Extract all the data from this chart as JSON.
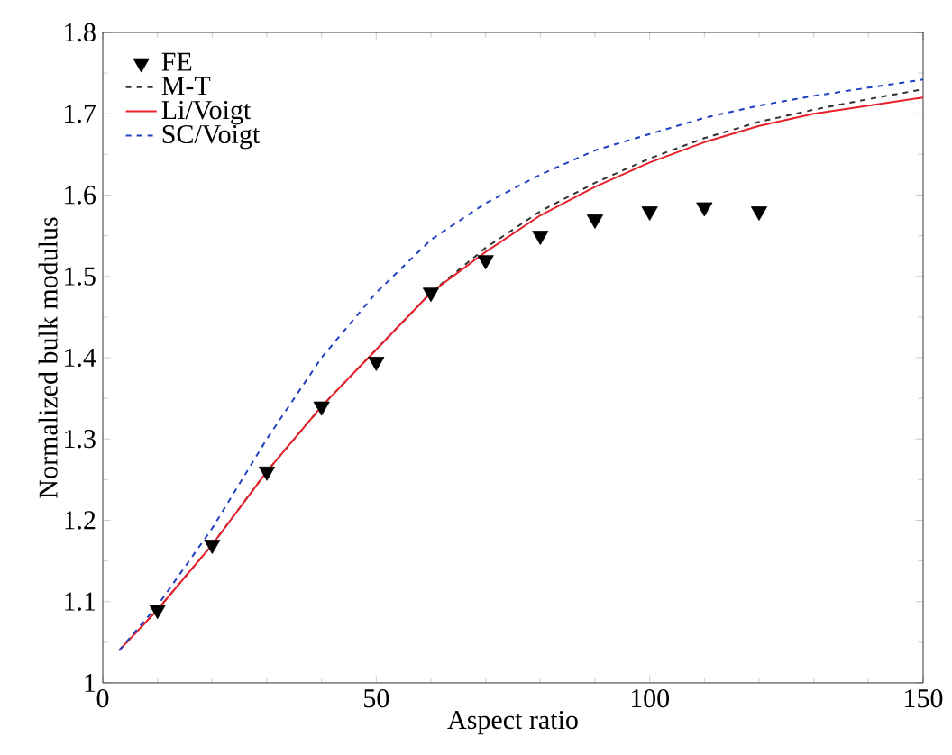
{
  "chart_data": {
    "type": "line",
    "xlabel": "Aspect ratio",
    "ylabel": "Normalized bulk modulus",
    "xlim": [
      0,
      150
    ],
    "ylim": [
      1,
      1.8
    ],
    "xticks": [
      0,
      50,
      100,
      150
    ],
    "yticks": [
      1,
      1.1,
      1.2,
      1.3,
      1.4,
      1.5,
      1.6,
      1.7,
      1.8
    ],
    "grid": false,
    "legend": "top left",
    "series": [
      {
        "name": "FE",
        "type": "scatter",
        "marker": "triangle",
        "color": "#000000",
        "x": [
          10,
          20,
          30,
          40,
          50,
          60,
          70,
          80,
          90,
          100,
          110,
          120
        ],
        "values": [
          1.09,
          1.17,
          1.26,
          1.34,
          1.395,
          1.48,
          1.52,
          1.55,
          1.57,
          1.58,
          1.585,
          1.58
        ]
      },
      {
        "name": "M-T",
        "line_style": "dashed",
        "color": "#333333",
        "x": [
          3,
          10,
          20,
          30,
          40,
          50,
          60,
          70,
          80,
          90,
          100,
          110,
          120,
          130,
          140,
          150
        ],
        "values": [
          1.04,
          1.09,
          1.17,
          1.26,
          1.34,
          1.41,
          1.48,
          1.535,
          1.58,
          1.615,
          1.645,
          1.67,
          1.69,
          1.705,
          1.718,
          1.73
        ]
      },
      {
        "name": "Li/Voigt",
        "line_style": "solid",
        "color": "#e8202a",
        "x": [
          3,
          10,
          20,
          30,
          40,
          50,
          60,
          70,
          80,
          90,
          100,
          110,
          120,
          130,
          140,
          150
        ],
        "values": [
          1.04,
          1.09,
          1.17,
          1.26,
          1.34,
          1.41,
          1.48,
          1.53,
          1.575,
          1.61,
          1.64,
          1.665,
          1.685,
          1.7,
          1.71,
          1.72
        ]
      },
      {
        "name": "SC/Voigt",
        "line_style": "dashed",
        "color": "#2040c0",
        "x": [
          3,
          10,
          20,
          30,
          40,
          50,
          60,
          70,
          80,
          90,
          100,
          110,
          120,
          130,
          140,
          150
        ],
        "values": [
          1.04,
          1.095,
          1.19,
          1.3,
          1.4,
          1.48,
          1.545,
          1.59,
          1.625,
          1.655,
          1.675,
          1.695,
          1.71,
          1.722,
          1.732,
          1.742
        ]
      }
    ]
  }
}
